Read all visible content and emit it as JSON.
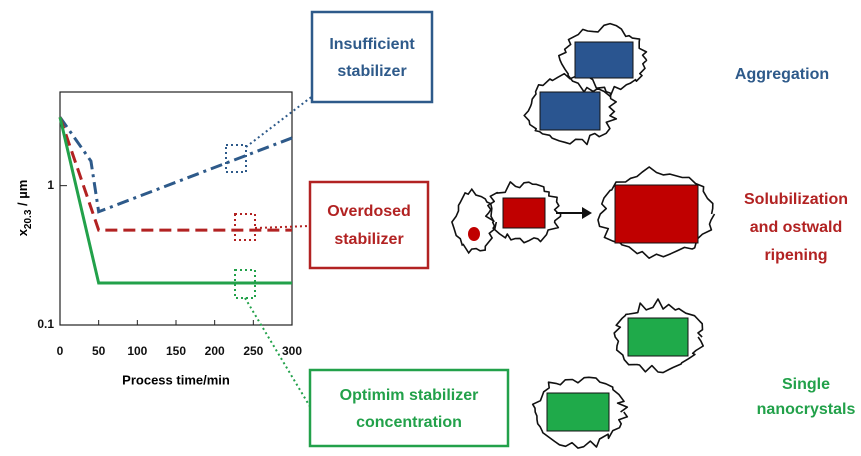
{
  "chart_data": {
    "type": "line",
    "x_label": "Process time/min",
    "y_label": "x",
    "y_label_sub": "20.3",
    "y_label_unit": " / µm",
    "xlim": [
      0,
      300
    ],
    "xticks": [
      0,
      50,
      100,
      150,
      200,
      250,
      300
    ],
    "ylim": [
      0.1,
      4.7
    ],
    "yticks": [
      0.1,
      1
    ],
    "log_y": true,
    "series": [
      {
        "color": "#2e5a8a",
        "dash": "dashdot",
        "x": [
          0,
          40,
          50,
          300
        ],
        "values": [
          3.1,
          1.5,
          0.65,
          2.2
        ]
      },
      {
        "color": "#b22222",
        "dash": "dash",
        "x": [
          0,
          50,
          300
        ],
        "values": [
          3.1,
          0.48,
          0.48
        ]
      },
      {
        "color": "#22a14a",
        "dash": "solid",
        "x": [
          0,
          50,
          300
        ],
        "values": [
          3.1,
          0.2,
          0.2
        ]
      }
    ]
  },
  "boxes": [
    {
      "lines": [
        "Insufficient",
        "stabilizer"
      ]
    },
    {
      "lines": [
        "Overdosed",
        "stabilizer"
      ]
    },
    {
      "lines": [
        "Optimim stabilizer",
        "concentration"
      ]
    }
  ],
  "outcomes": [
    {
      "lines": [
        "Aggregation"
      ]
    },
    {
      "lines": [
        "Solubilization",
        "and ostwald",
        "ripening"
      ]
    },
    {
      "lines": [
        "Single",
        "nanocrystals"
      ]
    }
  ]
}
